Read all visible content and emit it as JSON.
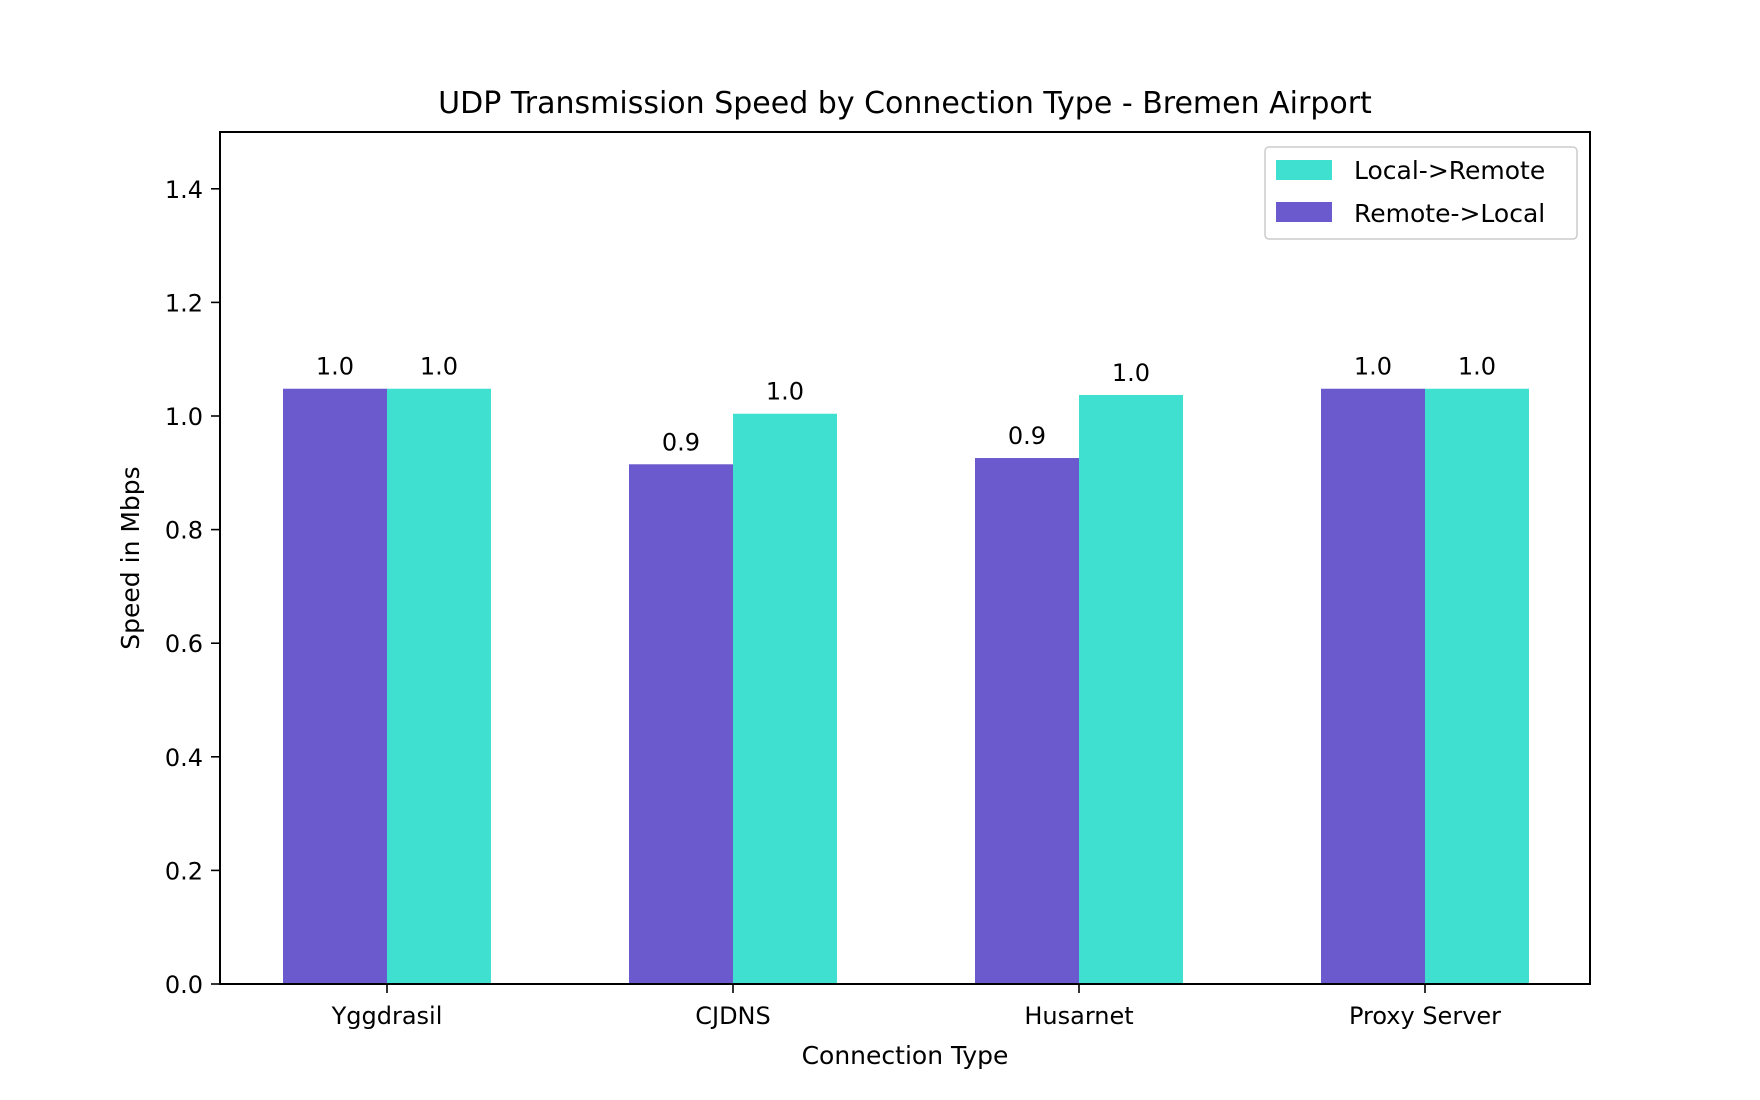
{
  "chart_data": {
    "type": "bar",
    "title": "UDP Transmission Speed by Connection Type - Bremen Airport",
    "xlabel": "Connection Type",
    "ylabel": "Speed in Mbps",
    "categories": [
      "Yggdrasil",
      "CJDNS",
      "Husarnet",
      "Proxy Server"
    ],
    "ylim": [
      0,
      1.5
    ],
    "yticks": [
      "0.0",
      "0.2",
      "0.4",
      "0.6",
      "0.8",
      "1.0",
      "1.2",
      "1.4"
    ],
    "grid": false,
    "legend_position": "top-right",
    "series": [
      {
        "name": "Remote->Local",
        "color": "#6a5acd",
        "values": [
          1.048,
          0.915,
          0.926,
          1.048
        ],
        "labels": [
          "1.0",
          "0.9",
          "0.9",
          "1.0"
        ]
      },
      {
        "name": "Local->Remote",
        "color": "#40e0d0",
        "values": [
          1.048,
          1.004,
          1.037,
          1.048
        ],
        "labels": [
          "1.0",
          "1.0",
          "1.0",
          "1.0"
        ]
      }
    ],
    "legend_order": [
      "Local->Remote",
      "Remote->Local"
    ]
  }
}
